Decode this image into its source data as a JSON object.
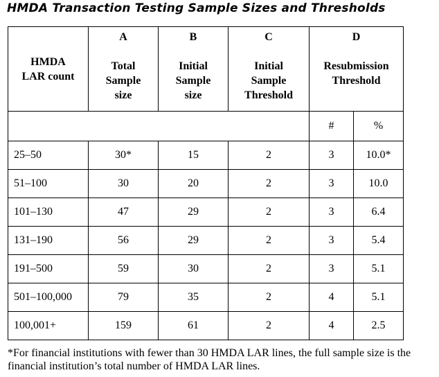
{
  "title": "HMDA Transaction Testing Sample Sizes and Thresholds",
  "header": {
    "row_label": [
      "HMDA",
      "LAR count"
    ],
    "columns": [
      {
        "letter": "A",
        "lines": [
          "Total",
          "Sample",
          "size"
        ]
      },
      {
        "letter": "B",
        "lines": [
          "Initial",
          "Sample",
          "size"
        ]
      },
      {
        "letter": "C",
        "lines": [
          "Initial",
          "Sample",
          "Threshold"
        ]
      },
      {
        "letter": "D",
        "lines": [
          "Resubmission",
          "Threshold"
        ]
      }
    ],
    "sub": {
      "count": "#",
      "percent": "%"
    }
  },
  "rows": [
    {
      "lar": "25–50",
      "total": "30*",
      "initial": "15",
      "threshold": "2",
      "count": "3",
      "percent": "10.0*"
    },
    {
      "lar": "51–100",
      "total": "30",
      "initial": "20",
      "threshold": "2",
      "count": "3",
      "percent": "10.0"
    },
    {
      "lar": "101–130",
      "total": "47",
      "initial": "29",
      "threshold": "2",
      "count": "3",
      "percent": "6.4"
    },
    {
      "lar": "131–190",
      "total": "56",
      "initial": "29",
      "threshold": "2",
      "count": "3",
      "percent": "5.4"
    },
    {
      "lar": "191–500",
      "total": "59",
      "initial": "30",
      "threshold": "2",
      "count": "3",
      "percent": "5.1"
    },
    {
      "lar": "501–100,000",
      "total": "79",
      "initial": "35",
      "threshold": "2",
      "count": "4",
      "percent": "5.1"
    },
    {
      "lar": "100,001+",
      "total": "159",
      "initial": "61",
      "threshold": "2",
      "count": "4",
      "percent": "2.5"
    }
  ],
  "footnote": "*For financial institutions with fewer than 30 HMDA LAR lines, the full sample size is the financial institution’s total number of HMDA LAR lines."
}
